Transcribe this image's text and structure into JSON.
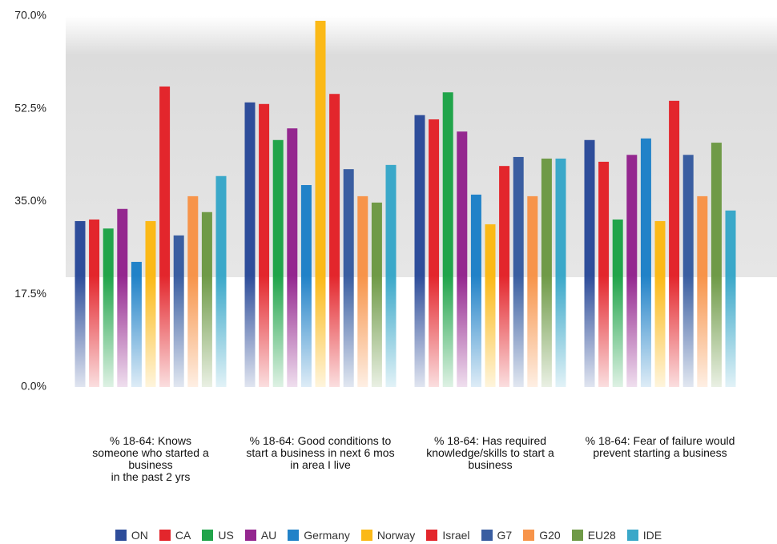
{
  "chart_data": {
    "type": "bar",
    "categories": [
      "% 18-64: Knows\nsomeone who started a\nbusiness\nin the past 2 yrs",
      "% 18-64: Good conditions to start a business in next 6 mos in area I live",
      "% 18-64: Has required knowledge/skills to start a business",
      "% 18-64: Fear of failure would prevent starting a business"
    ],
    "series": [
      {
        "name": "ON",
        "color": "#2e4d9a",
        "values": [
          31.3,
          53.7,
          51.3,
          46.6
        ]
      },
      {
        "name": "CA",
        "color": "#e3262c",
        "values": [
          31.6,
          53.4,
          50.5,
          42.5
        ]
      },
      {
        "name": "US",
        "color": "#21a44a",
        "values": [
          29.9,
          46.6,
          55.6,
          31.6
        ]
      },
      {
        "name": "AU",
        "color": "#94278f",
        "values": [
          33.6,
          48.8,
          48.2,
          43.8
        ]
      },
      {
        "name": "Germany",
        "color": "#2182c8",
        "values": [
          23.6,
          38.1,
          36.3,
          46.9
        ]
      },
      {
        "name": "Norway",
        "color": "#fbb917",
        "values": [
          31.3,
          69.1,
          30.7,
          31.3
        ]
      },
      {
        "name": "Israel",
        "color": "#e3262c",
        "values": [
          56.7,
          55.3,
          41.7,
          54.0
        ]
      },
      {
        "name": "G7",
        "color": "#3a5ea1",
        "values": [
          28.6,
          41.1,
          43.4,
          43.8
        ]
      },
      {
        "name": "G20",
        "color": "#f7944a",
        "values": [
          36.0,
          36.0,
          36.0,
          36.0
        ]
      },
      {
        "name": "EU28",
        "color": "#6f9a47",
        "values": [
          33.0,
          34.8,
          43.1,
          46.1
        ]
      },
      {
        "name": "IDE",
        "color": "#3aa8c9",
        "values": [
          39.8,
          41.9,
          43.1,
          33.3
        ]
      }
    ],
    "ylim": [
      0,
      70
    ],
    "yticks": [
      {
        "value": 0,
        "label": "0.0%"
      },
      {
        "value": 17.5,
        "label": "17.5%"
      },
      {
        "value": 35,
        "label": "35.0%"
      },
      {
        "value": 52.5,
        "label": "52.5%"
      },
      {
        "value": 70,
        "label": "70.0%"
      }
    ]
  }
}
